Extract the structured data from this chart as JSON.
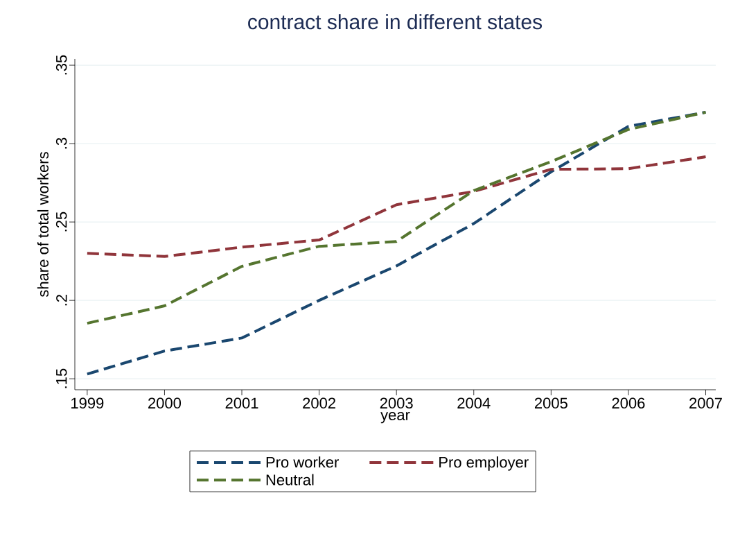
{
  "chart_data": {
    "type": "line",
    "title": "contract share in different states",
    "xlabel": "year",
    "ylabel": "share of total workers",
    "x": [
      1999,
      2000,
      2001,
      2002,
      2003,
      2004,
      2005,
      2006,
      2007
    ],
    "series": [
      {
        "name": "Pro worker",
        "color": "#1a476f",
        "values": [
          0.153,
          0.1677,
          0.176,
          0.2,
          0.222,
          0.249,
          0.282,
          0.311,
          0.32
        ]
      },
      {
        "name": "Pro employer",
        "color": "#90353b",
        "values": [
          0.23,
          0.228,
          0.234,
          0.2385,
          0.261,
          0.2695,
          0.2836,
          0.284,
          0.2916
        ]
      },
      {
        "name": "Neutral",
        "color": "#55752f",
        "values": [
          0.1854,
          0.1965,
          0.2217,
          0.2345,
          0.2376,
          0.27,
          0.2885,
          0.309,
          0.32
        ]
      }
    ],
    "xlim": [
      1998.84,
      2007.13
    ],
    "ylim": [
      0.143,
      0.354
    ],
    "xticks": [
      1999,
      2000,
      2001,
      2002,
      2003,
      2004,
      2005,
      2006,
      2007
    ],
    "yticks": [
      {
        "value": 0.15,
        "label": ".15"
      },
      {
        "value": 0.2,
        "label": ".2"
      },
      {
        "value": 0.25,
        "label": ".25"
      },
      {
        "value": 0.3,
        "label": ".3"
      },
      {
        "value": 0.35,
        "label": ".35"
      }
    ],
    "grid": "y",
    "legend": "bottom",
    "marker": "none",
    "line_style": "dashed"
  }
}
